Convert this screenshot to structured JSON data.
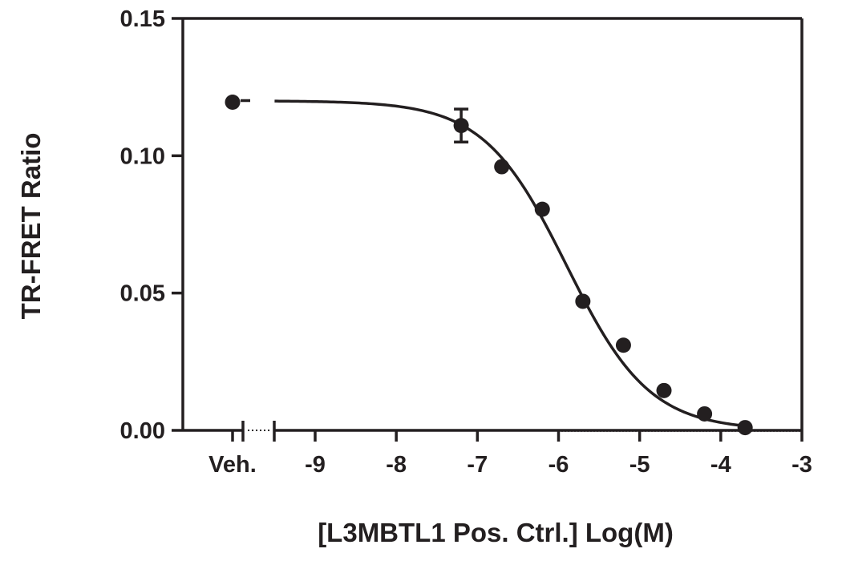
{
  "chart_data": {
    "type": "scatter",
    "title": "",
    "xlabel": "[L3MBTL1  Pos. Ctrl.] Log(M)",
    "ylabel": "TR-FRET Ratio",
    "xlim": [
      -9.5,
      -3
    ],
    "ylim": [
      0,
      0.15
    ],
    "x_tick_labels": [
      "Veh.",
      "-9",
      "-8",
      "-7",
      "-6",
      "-5",
      "-4",
      "-3"
    ],
    "x_ticks": [
      -9,
      -8,
      -7,
      -6,
      -5,
      -4,
      -3
    ],
    "y_tick_labels": [
      "0.00",
      "0.05",
      "0.10",
      "0.15"
    ],
    "y_ticks": [
      0,
      0.05,
      0.1,
      0.15
    ],
    "vehicle_point": {
      "label": "Veh.",
      "y": 0.1195
    },
    "series": [
      {
        "x": [
          -7.2,
          -6.7,
          -6.2,
          -5.7,
          -5.2,
          -4.7,
          -4.2,
          -3.7
        ],
        "y": [
          0.111,
          0.096,
          0.0805,
          0.047,
          0.031,
          0.0145,
          0.006,
          0.001
        ],
        "yerr": [
          0.006,
          0,
          0,
          0,
          0,
          0,
          0,
          0
        ]
      }
    ],
    "fit_curve": {
      "model": "four-parameter logistic",
      "top": 0.12,
      "bottom": 0.0,
      "log_ic50": -5.9,
      "hill_slope": -0.85
    },
    "grid": false,
    "legend": "none",
    "colors": {
      "ink": "#231f20"
    }
  }
}
